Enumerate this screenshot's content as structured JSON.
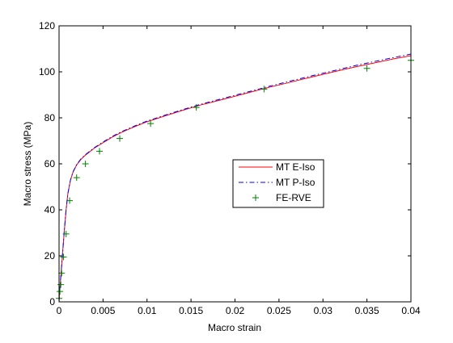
{
  "chart_data": {
    "type": "line",
    "title": "",
    "xlabel": "Macro strain",
    "ylabel": "Macro stress (MPa)",
    "xlim": [
      0,
      0.04
    ],
    "ylim": [
      0,
      120
    ],
    "xticks": [
      0,
      0.005,
      0.01,
      0.015,
      0.02,
      0.025,
      0.03,
      0.035,
      0.04
    ],
    "xtick_labels": [
      "0",
      "0.005",
      "0.01",
      "0.015",
      "0.02",
      "0.025",
      "0.03",
      "0.035",
      "0.04"
    ],
    "yticks": [
      0,
      20,
      40,
      60,
      80,
      100,
      120
    ],
    "ytick_labels": [
      "0",
      "20",
      "40",
      "60",
      "80",
      "100",
      "120"
    ],
    "grid": false,
    "legend_position": "center-right",
    "series": [
      {
        "name": "MT E-Iso",
        "style": "solid-line",
        "color": "#ff0000",
        "x": [
          0,
          0.0001,
          0.0002,
          0.0004,
          0.0006,
          0.0008,
          0.001,
          0.0013,
          0.0016,
          0.002,
          0.0025,
          0.003,
          0.004,
          0.005,
          0.006,
          0.007,
          0.008,
          0.009,
          0.01,
          0.012,
          0.014,
          0.016,
          0.018,
          0.02,
          0.022,
          0.024,
          0.026,
          0.028,
          0.03,
          0.032,
          0.034,
          0.036,
          0.038,
          0.04
        ],
        "y": [
          0,
          6,
          11,
          21,
          31,
          40,
          47,
          53,
          56.5,
          59.5,
          62,
          63.8,
          66.8,
          69.2,
          71.5,
          73.5,
          75.2,
          76.8,
          78.3,
          80.8,
          83.2,
          85.5,
          87.4,
          89.4,
          91.4,
          93.4,
          95.2,
          97.1,
          98.9,
          100.7,
          102.4,
          104.0,
          105.6,
          107.0
        ]
      },
      {
        "name": "MT P-Iso",
        "style": "dash-dot-line",
        "color": "#0000ff",
        "x": [
          0,
          0.0001,
          0.0002,
          0.0004,
          0.0006,
          0.0008,
          0.001,
          0.0013,
          0.0016,
          0.002,
          0.0025,
          0.003,
          0.004,
          0.005,
          0.006,
          0.007,
          0.008,
          0.009,
          0.01,
          0.012,
          0.014,
          0.016,
          0.018,
          0.02,
          0.022,
          0.024,
          0.026,
          0.028,
          0.03,
          0.032,
          0.034,
          0.036,
          0.038,
          0.04
        ],
        "y": [
          0,
          6,
          11,
          21,
          31,
          40,
          47,
          53,
          56.6,
          59.7,
          62.2,
          64,
          67,
          69.5,
          71.8,
          73.8,
          75.5,
          77.1,
          78.6,
          81.1,
          83.5,
          85.8,
          87.8,
          89.8,
          91.8,
          93.8,
          95.7,
          97.6,
          99.4,
          101.2,
          103.0,
          104.6,
          106.2,
          107.7
        ]
      },
      {
        "name": "FE-RVE",
        "style": "plus-markers",
        "color": "#008000",
        "x": [
          0,
          0.0001,
          0.0002,
          0.0003,
          0.0005,
          0.0008,
          0.0012,
          0.002,
          0.003,
          0.0046,
          0.0069,
          0.0104,
          0.0156,
          0.0233,
          0.035,
          0.04
        ],
        "y": [
          1.5,
          4.5,
          7.5,
          12.5,
          19.5,
          29.5,
          44,
          54,
          60,
          65.5,
          71,
          77.5,
          84.5,
          92.5,
          101.5,
          105
        ]
      }
    ]
  }
}
